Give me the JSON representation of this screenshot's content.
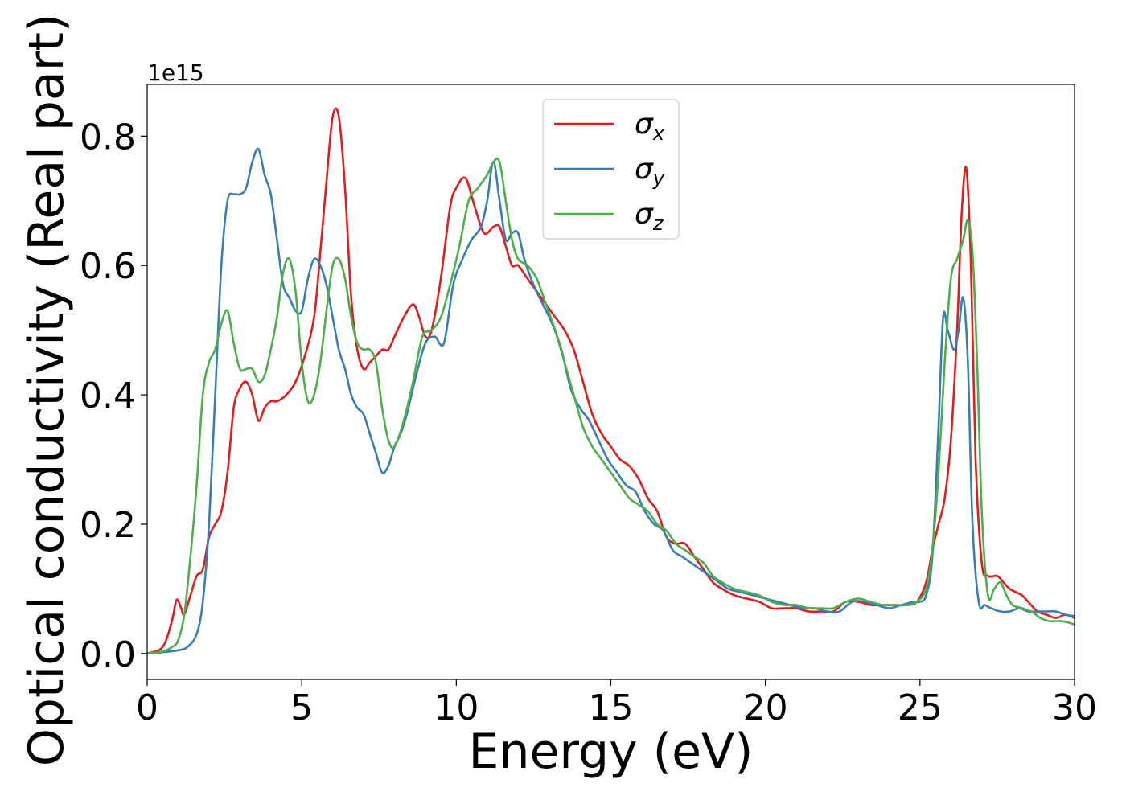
{
  "chart_data": {
    "type": "line",
    "title": "",
    "xlabel": "Energy (eV)",
    "ylabel": "Optical conductivity (Real part)",
    "y_offset_label": "1e15",
    "xlim": [
      0,
      30
    ],
    "ylim": [
      -0.04,
      0.88
    ],
    "xticks": [
      0,
      5,
      10,
      15,
      20,
      25,
      30
    ],
    "yticks": [
      0.0,
      0.2,
      0.4,
      0.6,
      0.8
    ],
    "xtick_labels": [
      "0",
      "5",
      "10",
      "15",
      "20",
      "25",
      "30"
    ],
    "ytick_labels": [
      "0.0",
      "0.2",
      "0.4",
      "0.6",
      "0.8"
    ],
    "grid": false,
    "legend_position": "top-center",
    "series": [
      {
        "name": "σx",
        "symbol": "σ",
        "subscript": "x",
        "color": "#e41a1c",
        "x": [
          0,
          0.5,
          0.8,
          0.95,
          1.1,
          1.2,
          1.4,
          1.6,
          1.8,
          2.0,
          2.2,
          2.4,
          2.6,
          2.8,
          3.0,
          3.2,
          3.4,
          3.6,
          3.8,
          4.0,
          4.2,
          4.5,
          4.8,
          5.1,
          5.4,
          5.6,
          5.8,
          6.0,
          6.2,
          6.4,
          6.6,
          6.8,
          7.0,
          7.2,
          7.4,
          7.6,
          7.8,
          8.0,
          8.3,
          8.6,
          8.8,
          9.0,
          9.2,
          9.5,
          9.8,
          10.0,
          10.3,
          10.6,
          10.9,
          11.2,
          11.4,
          11.6,
          11.8,
          12.0,
          12.3,
          12.6,
          12.9,
          13.2,
          13.5,
          13.8,
          14.1,
          14.4,
          14.7,
          15.0,
          15.3,
          15.6,
          15.9,
          16.2,
          16.5,
          16.8,
          17.1,
          17.4,
          17.7,
          18.0,
          18.3,
          18.6,
          19.0,
          19.4,
          19.8,
          20.2,
          20.6,
          21.0,
          21.4,
          21.8,
          22.2,
          22.6,
          23.0,
          23.4,
          23.8,
          24.2,
          24.6,
          24.9,
          25.2,
          25.4,
          25.6,
          25.8,
          26.0,
          26.2,
          26.35,
          26.5,
          26.65,
          26.8,
          27.0,
          27.2,
          27.5,
          27.7,
          27.9,
          28.1,
          28.3,
          28.5,
          28.8,
          29.1,
          29.4,
          29.7,
          30.0
        ],
        "values": [
          0.0,
          0.01,
          0.05,
          0.083,
          0.07,
          0.06,
          0.09,
          0.12,
          0.13,
          0.18,
          0.2,
          0.22,
          0.28,
          0.38,
          0.41,
          0.42,
          0.4,
          0.36,
          0.38,
          0.39,
          0.39,
          0.4,
          0.42,
          0.46,
          0.52,
          0.62,
          0.73,
          0.83,
          0.83,
          0.72,
          0.55,
          0.47,
          0.44,
          0.45,
          0.46,
          0.47,
          0.47,
          0.49,
          0.52,
          0.54,
          0.52,
          0.49,
          0.5,
          0.58,
          0.69,
          0.72,
          0.735,
          0.69,
          0.65,
          0.66,
          0.66,
          0.63,
          0.6,
          0.6,
          0.58,
          0.56,
          0.54,
          0.52,
          0.5,
          0.47,
          0.42,
          0.37,
          0.34,
          0.32,
          0.3,
          0.29,
          0.27,
          0.24,
          0.22,
          0.18,
          0.17,
          0.17,
          0.15,
          0.13,
          0.11,
          0.1,
          0.09,
          0.085,
          0.08,
          0.07,
          0.07,
          0.07,
          0.065,
          0.065,
          0.065,
          0.08,
          0.08,
          0.075,
          0.075,
          0.075,
          0.075,
          0.08,
          0.11,
          0.16,
          0.2,
          0.24,
          0.33,
          0.5,
          0.68,
          0.75,
          0.6,
          0.3,
          0.14,
          0.12,
          0.12,
          0.11,
          0.1,
          0.095,
          0.09,
          0.08,
          0.065,
          0.06,
          0.055,
          0.06,
          0.055
        ]
      },
      {
        "name": "σy",
        "symbol": "σ",
        "subscript": "y",
        "color": "#377eb8",
        "x": [
          0,
          0.5,
          1.0,
          1.3,
          1.6,
          1.8,
          2.0,
          2.2,
          2.4,
          2.6,
          2.8,
          3.0,
          3.2,
          3.4,
          3.6,
          3.8,
          4.0,
          4.2,
          4.4,
          4.6,
          4.8,
          5.0,
          5.2,
          5.4,
          5.6,
          5.8,
          6.0,
          6.2,
          6.4,
          6.6,
          6.8,
          7.0,
          7.2,
          7.4,
          7.6,
          7.8,
          8.0,
          8.2,
          8.4,
          8.7,
          9.0,
          9.3,
          9.6,
          9.9,
          10.2,
          10.5,
          10.8,
          11.0,
          11.2,
          11.4,
          11.6,
          11.8,
          12.0,
          12.2,
          12.5,
          12.8,
          13.1,
          13.4,
          13.7,
          14.0,
          14.3,
          14.6,
          14.9,
          15.2,
          15.5,
          15.8,
          16.1,
          16.4,
          16.7,
          17.0,
          17.3,
          17.6,
          17.9,
          18.2,
          18.5,
          18.8,
          19.2,
          19.6,
          20.0,
          20.4,
          20.8,
          21.2,
          21.6,
          22.0,
          22.4,
          22.8,
          23.2,
          23.6,
          24.0,
          24.4,
          24.8,
          25.0,
          25.2,
          25.4,
          25.6,
          25.75,
          25.9,
          26.1,
          26.25,
          26.4,
          26.55,
          26.7,
          26.9,
          27.1,
          27.3,
          27.6,
          27.9,
          28.2,
          28.5,
          28.8,
          29.1,
          29.4,
          29.7,
          30.0
        ],
        "values": [
          0.0,
          0.002,
          0.005,
          0.01,
          0.03,
          0.08,
          0.2,
          0.4,
          0.6,
          0.7,
          0.71,
          0.71,
          0.72,
          0.76,
          0.78,
          0.74,
          0.71,
          0.64,
          0.57,
          0.55,
          0.53,
          0.53,
          0.58,
          0.61,
          0.6,
          0.57,
          0.52,
          0.47,
          0.44,
          0.4,
          0.38,
          0.37,
          0.34,
          0.31,
          0.28,
          0.29,
          0.32,
          0.34,
          0.37,
          0.43,
          0.48,
          0.49,
          0.48,
          0.57,
          0.61,
          0.64,
          0.66,
          0.7,
          0.76,
          0.7,
          0.64,
          0.65,
          0.65,
          0.61,
          0.57,
          0.54,
          0.51,
          0.47,
          0.41,
          0.38,
          0.36,
          0.33,
          0.3,
          0.28,
          0.26,
          0.25,
          0.22,
          0.2,
          0.19,
          0.16,
          0.15,
          0.14,
          0.13,
          0.12,
          0.11,
          0.1,
          0.095,
          0.09,
          0.085,
          0.08,
          0.075,
          0.07,
          0.07,
          0.065,
          0.065,
          0.08,
          0.08,
          0.075,
          0.07,
          0.075,
          0.08,
          0.08,
          0.09,
          0.15,
          0.35,
          0.52,
          0.5,
          0.47,
          0.5,
          0.55,
          0.45,
          0.2,
          0.08,
          0.075,
          0.07,
          0.065,
          0.065,
          0.07,
          0.065,
          0.065,
          0.065,
          0.065,
          0.06,
          0.058
        ]
      },
      {
        "name": "σz",
        "symbol": "σ",
        "subscript": "z",
        "color": "#4daf4a",
        "x": [
          0,
          0.5,
          0.8,
          1.0,
          1.2,
          1.4,
          1.6,
          1.8,
          2.0,
          2.2,
          2.4,
          2.6,
          2.8,
          3.0,
          3.2,
          3.4,
          3.6,
          3.8,
          4.0,
          4.2,
          4.4,
          4.6,
          4.8,
          5.0,
          5.2,
          5.4,
          5.6,
          5.8,
          6.0,
          6.2,
          6.4,
          6.6,
          6.8,
          7.0,
          7.2,
          7.4,
          7.6,
          7.8,
          8.0,
          8.3,
          8.6,
          8.9,
          9.2,
          9.5,
          9.8,
          10.1,
          10.4,
          10.7,
          11.0,
          11.2,
          11.4,
          11.6,
          11.8,
          12.0,
          12.3,
          12.6,
          12.9,
          13.2,
          13.5,
          13.8,
          14.1,
          14.4,
          14.7,
          15.0,
          15.3,
          15.6,
          15.9,
          16.2,
          16.5,
          16.8,
          17.1,
          17.4,
          17.7,
          18.0,
          18.3,
          18.6,
          19.0,
          19.4,
          19.8,
          20.2,
          20.6,
          21.0,
          21.4,
          21.8,
          22.2,
          22.6,
          23.0,
          23.4,
          23.8,
          24.2,
          24.6,
          24.9,
          25.2,
          25.4,
          25.6,
          25.8,
          26.0,
          26.2,
          26.4,
          26.55,
          26.7,
          26.85,
          27.0,
          27.2,
          27.4,
          27.6,
          27.8,
          28.0,
          28.3,
          28.6,
          28.9,
          29.2,
          29.6,
          30.0
        ],
        "values": [
          0.0,
          0.003,
          0.01,
          0.02,
          0.06,
          0.15,
          0.26,
          0.4,
          0.45,
          0.47,
          0.51,
          0.53,
          0.48,
          0.44,
          0.44,
          0.44,
          0.42,
          0.43,
          0.47,
          0.52,
          0.59,
          0.61,
          0.56,
          0.45,
          0.39,
          0.4,
          0.45,
          0.53,
          0.6,
          0.61,
          0.58,
          0.52,
          0.48,
          0.47,
          0.47,
          0.45,
          0.38,
          0.33,
          0.32,
          0.36,
          0.42,
          0.49,
          0.5,
          0.52,
          0.57,
          0.63,
          0.7,
          0.72,
          0.74,
          0.76,
          0.76,
          0.7,
          0.64,
          0.61,
          0.6,
          0.58,
          0.54,
          0.5,
          0.45,
          0.4,
          0.35,
          0.32,
          0.3,
          0.28,
          0.26,
          0.24,
          0.23,
          0.22,
          0.2,
          0.19,
          0.17,
          0.16,
          0.15,
          0.14,
          0.12,
          0.11,
          0.1,
          0.095,
          0.09,
          0.08,
          0.075,
          0.075,
          0.07,
          0.07,
          0.07,
          0.08,
          0.085,
          0.08,
          0.075,
          0.075,
          0.075,
          0.08,
          0.1,
          0.16,
          0.28,
          0.45,
          0.58,
          0.61,
          0.64,
          0.67,
          0.62,
          0.45,
          0.22,
          0.09,
          0.1,
          0.11,
          0.09,
          0.075,
          0.07,
          0.065,
          0.055,
          0.05,
          0.05,
          0.045
        ]
      }
    ]
  }
}
